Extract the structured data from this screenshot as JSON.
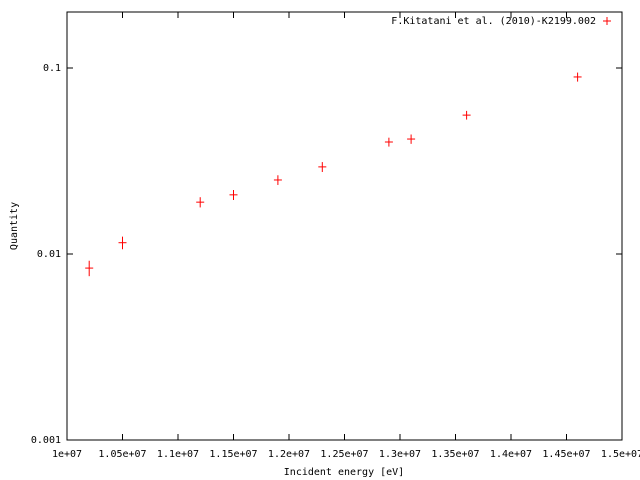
{
  "chart_data": {
    "type": "scatter",
    "xlabel": "Incident energy [eV]",
    "ylabel": "Quantity",
    "xlim": [
      10000000,
      15000000
    ],
    "xticks": [
      {
        "value": 10000000,
        "label": "1e+07"
      },
      {
        "value": 10500000,
        "label": "1.05e+07"
      },
      {
        "value": 11000000,
        "label": "1.1e+07"
      },
      {
        "value": 11500000,
        "label": "1.15e+07"
      },
      {
        "value": 12000000,
        "label": "1.2e+07"
      },
      {
        "value": 12500000,
        "label": "1.25e+07"
      },
      {
        "value": 13000000,
        "label": "1.3e+07"
      },
      {
        "value": 13500000,
        "label": "1.35e+07"
      },
      {
        "value": 14000000,
        "label": "1.4e+07"
      },
      {
        "value": 14500000,
        "label": "1.45e+07"
      },
      {
        "value": 15000000,
        "label": "1.5e+07"
      }
    ],
    "ylim": [
      0.001,
      0.2
    ],
    "yticks": [
      0.001,
      0.01,
      0.1
    ],
    "ylog": true,
    "grid": false,
    "legend": "top-right",
    "series": [
      {
        "name": "F.Kitatani et al. (2010)-K2199.002",
        "color": "#ff0000",
        "x": [
          10200000,
          10500000,
          11200000,
          11500000,
          11900000,
          12300000,
          12900000,
          13100000,
          13600000,
          14600000
        ],
        "values": [
          0.0084,
          0.0115,
          0.019,
          0.0208,
          0.025,
          0.0294,
          0.04,
          0.0415,
          0.0558,
          0.0895
        ],
        "errors": [
          0.0008,
          0.0009,
          0.0012,
          0.0013,
          0.0015,
          0.0018,
          0.0022,
          0.0024,
          0.003,
          0.005
        ]
      }
    ]
  }
}
